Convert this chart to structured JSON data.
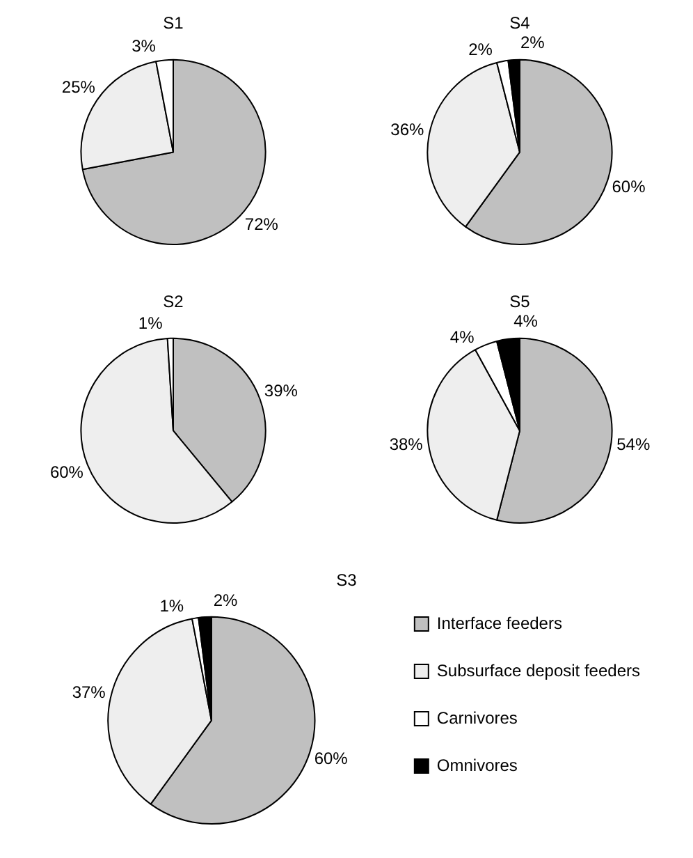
{
  "chart_data": [
    {
      "type": "pie",
      "title": "S1",
      "categories": [
        null,
        null,
        null
      ],
      "values": [
        72,
        25,
        3
      ],
      "colors": [
        "#c0c0c0",
        "#eeeeee",
        "#ffffff"
      ],
      "value_labels": [
        "72%",
        "25%",
        "3%"
      ],
      "legend": false
    },
    {
      "type": "pie",
      "title": "S4",
      "categories": [
        null,
        null,
        null,
        null
      ],
      "values": [
        60,
        36,
        2,
        2
      ],
      "colors": [
        "#c0c0c0",
        "#eeeeee",
        "#ffffff",
        "#000000"
      ],
      "value_labels": [
        "60%",
        "36%",
        "2%",
        "2%"
      ],
      "legend": false
    },
    {
      "type": "pie",
      "title": "S2",
      "categories": [
        null,
        null,
        null
      ],
      "values": [
        39,
        60,
        1
      ],
      "colors": [
        "#c0c0c0",
        "#eeeeee",
        "#ffffff"
      ],
      "value_labels": [
        "39%",
        "60%",
        "1%"
      ],
      "legend": false
    },
    {
      "type": "pie",
      "title": "S5",
      "categories": [
        null,
        null,
        null,
        null
      ],
      "values": [
        54,
        38,
        4,
        4
      ],
      "colors": [
        "#c0c0c0",
        "#eeeeee",
        "#ffffff",
        "#000000"
      ],
      "value_labels": [
        "54%",
        "38%",
        "4%",
        "4%"
      ],
      "legend": false
    },
    {
      "type": "pie",
      "title": "S3",
      "categories": [
        "Interface feeders",
        "Subsurface deposit feeders",
        "Carnivores",
        "Omnivores"
      ],
      "values": [
        60,
        37,
        1,
        2
      ],
      "colors": [
        "#c0c0c0",
        "#eeeeee",
        "#ffffff",
        "#000000"
      ],
      "value_labels": [
        "60%",
        "37%",
        "1%",
        "2%"
      ],
      "legend": "right"
    }
  ]
}
